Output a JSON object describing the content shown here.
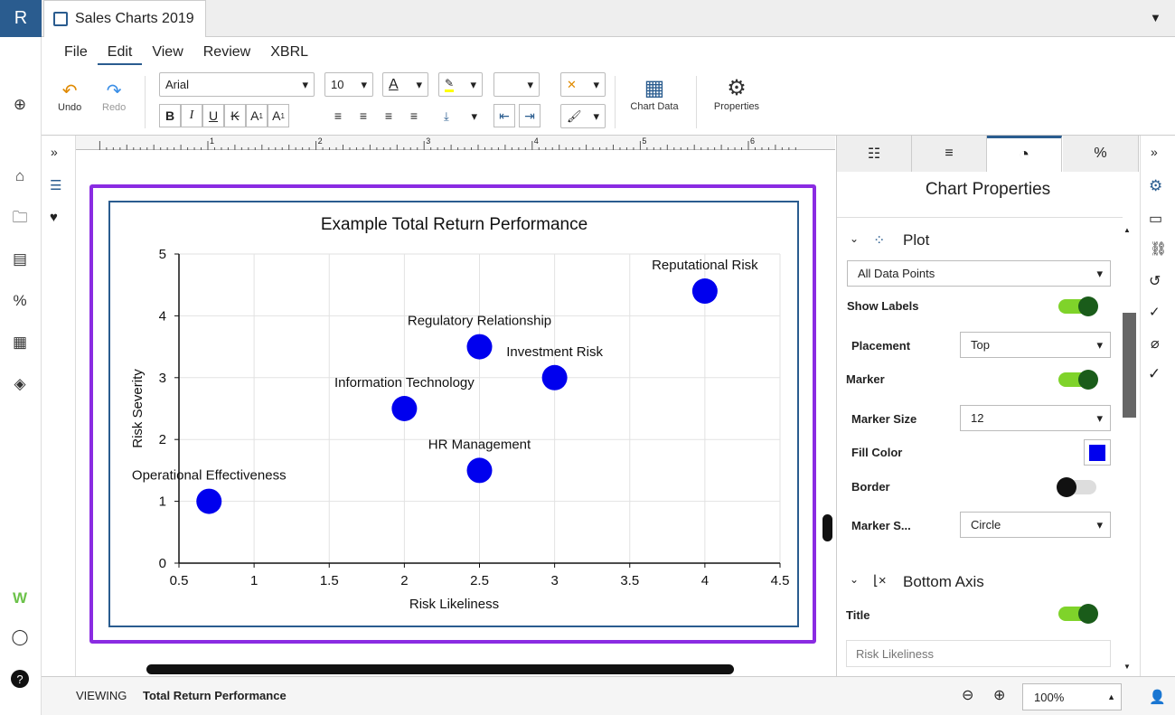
{
  "app": {
    "logo": "R",
    "doc_tab_title": "Sales Charts 2019"
  },
  "menu": [
    "File",
    "Edit",
    "View",
    "Review",
    "XBRL"
  ],
  "toolbar": {
    "undo": "Undo",
    "redo": "Redo",
    "font": "Arial",
    "font_size": "10",
    "chart_data": "Chart Data",
    "properties": "Properties"
  },
  "ruler_marks": [
    "1",
    "2",
    "3",
    "4",
    "5",
    "6"
  ],
  "chart_data": {
    "type": "scatter",
    "title": "Example Total Return Performance",
    "xlabel": "Risk Likeliness",
    "ylabel": "Risk Severity",
    "xlim": [
      0.5,
      4.5
    ],
    "ylim": [
      0,
      5
    ],
    "xticks": [
      "0.5",
      "1",
      "1.5",
      "2",
      "2.5",
      "3",
      "3.5",
      "4",
      "4.5"
    ],
    "yticks": [
      "0",
      "1",
      "2",
      "3",
      "4",
      "5"
    ],
    "grid": true,
    "marker_color": "#0000ee",
    "points": [
      {
        "label": "Operational Effectiveness",
        "x": 0.7,
        "y": 1
      },
      {
        "label": "Information Technology",
        "x": 2,
        "y": 2.5
      },
      {
        "label": "HR Management",
        "x": 2.5,
        "y": 1.5
      },
      {
        "label": "Regulatory Relationship",
        "x": 2.5,
        "y": 3.5
      },
      {
        "label": "Investment Risk",
        "x": 3,
        "y": 3
      },
      {
        "label": "Reputational Risk",
        "x": 4,
        "y": 4.4
      }
    ]
  },
  "panel": {
    "title": "Chart Properties",
    "plot_section": "Plot",
    "data_points_select": "All Data Points",
    "show_labels": "Show Labels",
    "placement": "Placement",
    "placement_value": "Top",
    "marker": "Marker",
    "marker_size": "Marker Size",
    "marker_size_value": "12",
    "fill_color": "Fill Color",
    "fill_color_value": "#0000ee",
    "border": "Border",
    "marker_shape": "Marker S...",
    "marker_shape_value": "Circle",
    "bottom_axis_section": "Bottom Axis",
    "axis_title": "Title",
    "axis_title_placeholder": "Risk Likeliness"
  },
  "status": {
    "viewing_label": "VIEWING",
    "viewing_value": "Total Return Performance",
    "zoom": "100%"
  }
}
